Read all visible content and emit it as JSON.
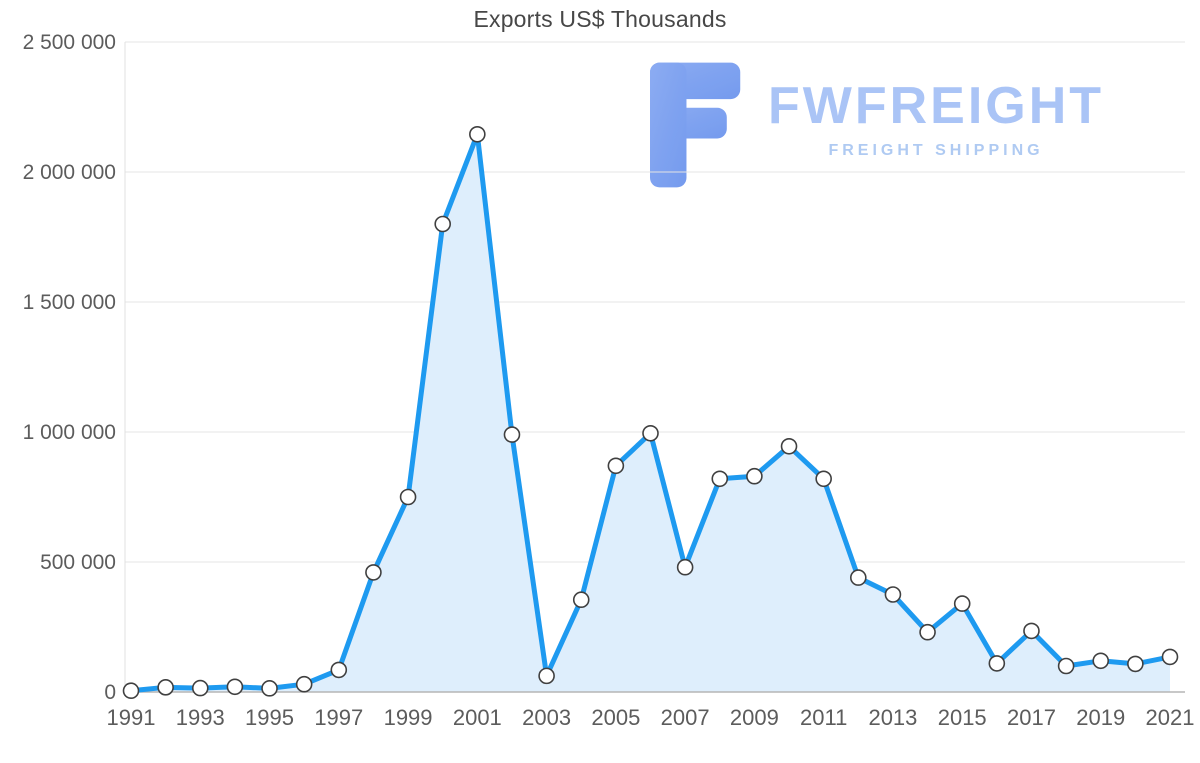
{
  "page": {
    "background": "#ffffff"
  },
  "watermark": {
    "brand": "FWFREIGHT",
    "tagline": "FREIGHT SHIPPING",
    "icon_color": "#7b9ff0",
    "brand_color": "#a6c1f6",
    "tagline_color": "#abc8f2"
  },
  "chart_data": {
    "type": "area",
    "title": "Exports US$ Thousands",
    "x": [
      1991,
      1992,
      1993,
      1994,
      1995,
      1996,
      1997,
      1998,
      1999,
      2000,
      2001,
      2002,
      2003,
      2004,
      2005,
      2006,
      2007,
      2008,
      2009,
      2010,
      2011,
      2012,
      2013,
      2014,
      2015,
      2016,
      2017,
      2018,
      2019,
      2020,
      2021
    ],
    "values": [
      5000,
      18000,
      15000,
      20000,
      14000,
      30000,
      85000,
      460000,
      750000,
      1800000,
      2145000,
      990000,
      62000,
      355000,
      870000,
      995000,
      480000,
      820000,
      830000,
      945000,
      820000,
      440000,
      375000,
      230000,
      340000,
      110000,
      235000,
      100000,
      120000,
      108000,
      135000
    ],
    "x_tick_labels": [
      "1991",
      "1993",
      "1995",
      "1997",
      "1999",
      "2001",
      "2003",
      "2005",
      "2007",
      "2009",
      "2011",
      "2013",
      "2015",
      "2017",
      "2019",
      "2021"
    ],
    "y_ticks": [
      {
        "value": 0,
        "label": "0"
      },
      {
        "value": 500000,
        "label": "500 000"
      },
      {
        "value": 1000000,
        "label": "1 000 000"
      },
      {
        "value": 1500000,
        "label": "1 500 000"
      },
      {
        "value": 2000000,
        "label": "2 000 000"
      },
      {
        "value": 2500000,
        "label": "2 500 000"
      }
    ],
    "ylim": [
      0,
      2500000
    ],
    "grid": "horizontal",
    "legend": "none",
    "line_color": "#1e9af0",
    "fill_color": "#deeefc",
    "marker_fill": "#ffffff",
    "marker_stroke": "#404040",
    "axis_color": "#b5b5b5",
    "grid_color": "#e4e4e4",
    "tick_label_color": "#5c5c5c"
  }
}
